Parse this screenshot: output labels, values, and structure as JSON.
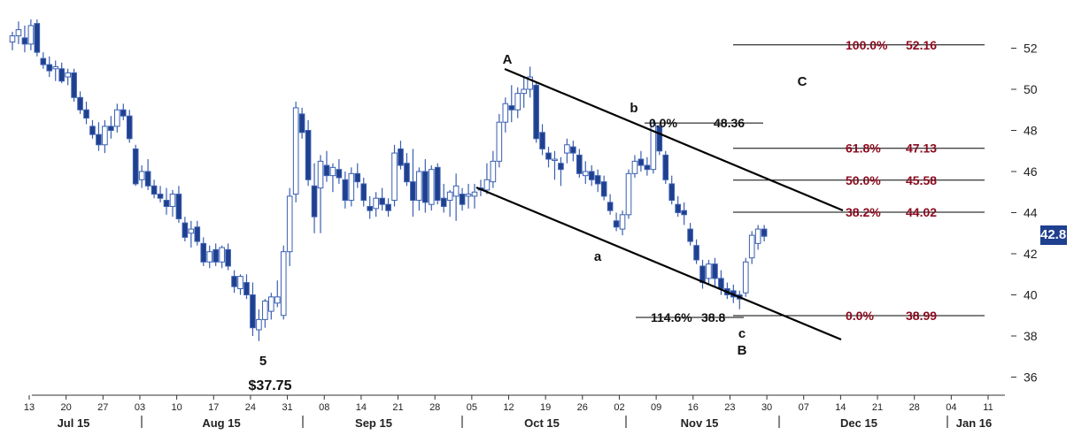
{
  "chart_data": {
    "type": "candlestick",
    "title": "",
    "xlabel": "",
    "ylabel": "",
    "ylim": [
      35.5,
      53.8
    ],
    "grid": false,
    "current_price": "42.85",
    "y_ticks": [
      "52",
      "50",
      "48",
      "46",
      "44",
      "42",
      "40",
      "38",
      "36"
    ],
    "x_day_ticks": [
      "13",
      "20",
      "27",
      "03",
      "10",
      "17",
      "24",
      "31",
      "08",
      "14",
      "21",
      "28",
      "05",
      "12",
      "19",
      "26",
      "02",
      "09",
      "16",
      "23",
      "30",
      "07",
      "14",
      "21",
      "28",
      "04",
      "11"
    ],
    "x_month_labels": [
      "Jul 15",
      "Aug 15",
      "Sep 15",
      "Oct 15",
      "Nov 15",
      "Dec 15",
      "Jan 16"
    ],
    "candles_ohlc": [
      [
        52.3,
        52.8,
        51.9,
        52.6
      ],
      [
        52.6,
        53.3,
        52.2,
        52.9
      ],
      [
        52.5,
        53.1,
        51.8,
        52.2
      ],
      [
        52.2,
        53.4,
        51.9,
        53.1
      ],
      [
        53.2,
        53.4,
        51.6,
        51.8
      ],
      [
        51.5,
        51.8,
        51.0,
        51.2
      ],
      [
        51.2,
        51.6,
        50.6,
        50.9
      ],
      [
        51.0,
        51.4,
        50.4,
        51.1
      ],
      [
        51.0,
        51.3,
        50.3,
        50.4
      ],
      [
        50.6,
        51.0,
        50.2,
        50.8
      ],
      [
        50.8,
        51.0,
        49.4,
        49.6
      ],
      [
        49.6,
        49.9,
        48.8,
        49.0
      ],
      [
        49.0,
        49.4,
        48.3,
        48.6
      ],
      [
        48.2,
        48.5,
        47.6,
        47.8
      ],
      [
        47.8,
        48.4,
        47.0,
        47.3
      ],
      [
        47.3,
        48.5,
        46.9,
        48.2
      ],
      [
        48.2,
        48.7,
        47.6,
        48.0
      ],
      [
        48.2,
        49.3,
        47.9,
        49.0
      ],
      [
        49.0,
        49.3,
        48.5,
        48.7
      ],
      [
        48.7,
        49.0,
        47.4,
        47.6
      ],
      [
        47.1,
        47.3,
        45.3,
        45.4
      ],
      [
        45.6,
        46.3,
        45.2,
        46.0
      ],
      [
        46.0,
        46.6,
        45.1,
        45.3
      ],
      [
        45.3,
        45.6,
        44.7,
        44.9
      ],
      [
        44.9,
        45.3,
        44.5,
        44.7
      ],
      [
        44.6,
        45.2,
        43.9,
        44.3
      ],
      [
        44.3,
        45.1,
        43.8,
        44.9
      ],
      [
        44.9,
        45.3,
        43.5,
        43.7
      ],
      [
        43.5,
        43.8,
        42.6,
        42.8
      ],
      [
        43.0,
        43.6,
        42.3,
        43.2
      ],
      [
        43.3,
        43.6,
        42.4,
        42.6
      ],
      [
        42.5,
        42.8,
        41.4,
        41.6
      ],
      [
        41.6,
        42.4,
        41.3,
        42.1
      ],
      [
        42.2,
        42.5,
        41.4,
        41.6
      ],
      [
        41.6,
        42.4,
        41.3,
        42.3
      ],
      [
        42.2,
        42.5,
        41.2,
        41.4
      ],
      [
        40.9,
        41.2,
        40.1,
        40.4
      ],
      [
        40.3,
        41.0,
        40.0,
        40.9
      ],
      [
        40.6,
        41.0,
        39.8,
        40.0
      ],
      [
        40.0,
        40.6,
        38.0,
        38.4
      ],
      [
        38.3,
        39.3,
        37.75,
        38.8
      ],
      [
        38.8,
        39.8,
        38.4,
        39.7
      ],
      [
        39.2,
        40.1,
        38.8,
        39.9
      ],
      [
        39.6,
        40.7,
        39.4,
        39.9
      ],
      [
        39.0,
        42.4,
        38.8,
        42.1
      ],
      [
        42.1,
        45.2,
        41.4,
        44.8
      ],
      [
        44.9,
        49.4,
        44.5,
        49.1
      ],
      [
        48.8,
        49.1,
        47.6,
        47.9
      ],
      [
        48.0,
        48.5,
        45.3,
        45.6
      ],
      [
        45.3,
        46.4,
        43.0,
        43.8
      ],
      [
        45.2,
        46.8,
        43.0,
        46.5
      ],
      [
        46.3,
        47.0,
        45.5,
        45.8
      ],
      [
        45.8,
        46.4,
        45.0,
        46.2
      ],
      [
        46.1,
        46.6,
        45.4,
        45.7
      ],
      [
        45.6,
        46.0,
        44.2,
        44.6
      ],
      [
        44.6,
        46.2,
        44.3,
        45.9
      ],
      [
        45.9,
        46.4,
        45.2,
        45.5
      ],
      [
        45.4,
        45.7,
        44.3,
        44.6
      ],
      [
        44.3,
        44.8,
        43.7,
        44.1
      ],
      [
        44.2,
        45.0,
        43.8,
        44.7
      ],
      [
        44.7,
        45.2,
        44.1,
        44.4
      ],
      [
        44.4,
        44.7,
        43.8,
        44.1
      ],
      [
        44.6,
        47.3,
        44.3,
        46.9
      ],
      [
        47.1,
        47.5,
        46.1,
        46.3
      ],
      [
        46.4,
        46.9,
        45.3,
        45.5
      ],
      [
        45.5,
        47.1,
        43.8,
        44.6
      ],
      [
        44.6,
        46.2,
        44.1,
        46.0
      ],
      [
        46.0,
        46.6,
        44.0,
        44.5
      ],
      [
        44.4,
        46.3,
        44.1,
        46.1
      ],
      [
        46.2,
        46.4,
        44.4,
        44.6
      ],
      [
        44.7,
        45.4,
        44.0,
        44.3
      ],
      [
        44.6,
        45.1,
        43.8,
        45.0
      ],
      [
        44.8,
        45.9,
        43.6,
        45.3
      ],
      [
        44.9,
        45.2,
        44.1,
        44.4
      ],
      [
        44.8,
        45.4,
        44.2,
        44.9
      ],
      [
        44.8,
        45.4,
        44.2,
        45.0
      ],
      [
        45.2,
        45.6,
        44.8,
        45.1
      ],
      [
        45.1,
        46.4,
        44.9,
        45.6
      ],
      [
        45.5,
        47.0,
        45.2,
        46.5
      ],
      [
        46.5,
        48.8,
        46.2,
        48.4
      ],
      [
        48.4,
        49.6,
        47.9,
        49.3
      ],
      [
        49.2,
        50.2,
        48.4,
        49.0
      ],
      [
        49.0,
        50.1,
        48.6,
        49.8
      ],
      [
        49.8,
        50.6,
        49.1,
        50.0
      ],
      [
        50.0,
        51.1,
        49.6,
        50.6
      ],
      [
        50.2,
        50.3,
        47.4,
        47.6
      ],
      [
        47.9,
        48.3,
        46.8,
        47.1
      ],
      [
        46.9,
        47.2,
        46.2,
        46.6
      ],
      [
        46.6,
        47.0,
        45.6,
        46.6
      ],
      [
        46.4,
        46.7,
        45.3,
        46.1
      ],
      [
        46.9,
        47.6,
        46.4,
        47.3
      ],
      [
        47.2,
        47.5,
        46.5,
        46.9
      ],
      [
        46.8,
        47.1,
        45.7,
        45.9
      ],
      [
        45.8,
        46.5,
        45.4,
        46.0
      ],
      [
        46.0,
        46.3,
        45.3,
        45.6
      ],
      [
        45.8,
        46.1,
        45.0,
        45.4
      ],
      [
        45.5,
        45.8,
        44.6,
        44.8
      ],
      [
        44.5,
        44.9,
        43.9,
        44.1
      ],
      [
        43.6,
        44.0,
        43.1,
        43.3
      ],
      [
        43.2,
        44.1,
        42.9,
        43.9
      ],
      [
        43.9,
        46.1,
        43.7,
        45.9
      ],
      [
        45.9,
        46.8,
        45.7,
        46.5
      ],
      [
        46.6,
        47.0,
        46.0,
        46.3
      ],
      [
        46.3,
        46.7,
        45.8,
        46.1
      ],
      [
        46.1,
        48.5,
        45.9,
        48.36
      ],
      [
        48.2,
        48.3,
        46.8,
        47.0
      ],
      [
        46.8,
        47.0,
        45.4,
        45.6
      ],
      [
        45.4,
        45.8,
        44.4,
        44.6
      ],
      [
        44.4,
        44.8,
        43.8,
        44.0
      ],
      [
        44.1,
        44.5,
        43.4,
        43.9
      ],
      [
        43.2,
        43.5,
        42.4,
        42.6
      ],
      [
        42.4,
        42.7,
        41.5,
        41.7
      ],
      [
        41.4,
        41.7,
        40.3,
        40.6
      ],
      [
        40.8,
        41.7,
        40.5,
        41.5
      ],
      [
        41.5,
        41.8,
        40.4,
        40.8
      ],
      [
        40.8,
        41.2,
        40.0,
        40.3
      ],
      [
        40.3,
        40.6,
        39.8,
        40.0
      ],
      [
        40.2,
        40.5,
        39.6,
        39.9
      ],
      [
        40.0,
        40.2,
        39.3,
        39.8
      ],
      [
        40.1,
        41.8,
        39.9,
        41.6
      ],
      [
        41.8,
        43.1,
        41.5,
        42.9
      ],
      [
        42.5,
        43.4,
        42.2,
        43.2
      ],
      [
        43.2,
        43.4,
        42.6,
        42.85
      ]
    ],
    "fib_levels": [
      {
        "pct": "100.0%",
        "value": "52.16"
      },
      {
        "pct": "61.8%",
        "value": "47.13"
      },
      {
        "pct": "50.0%",
        "value": "45.58"
      },
      {
        "pct": "38.2%",
        "value": "44.02"
      },
      {
        "pct": "0.0%",
        "value": "38.99"
      }
    ],
    "fib_top": {
      "pct": "0.0%",
      "value": "48.36"
    },
    "fib_ext": {
      "pct": "114.6%",
      "value": "38.8"
    },
    "wave_labels": {
      "A": "A",
      "b": "b",
      "a": "a",
      "c": "c",
      "B": "B",
      "C": "C",
      "five": "5",
      "low": "$37.75"
    },
    "colors": {
      "bear": "#1f3f8f",
      "bull_fill": "#ffffff",
      "wick": "#3a5fb0",
      "fib_text": "#8b0a1e",
      "axis": "#333333",
      "price_tag_bg": "#1f3f8f"
    }
  }
}
